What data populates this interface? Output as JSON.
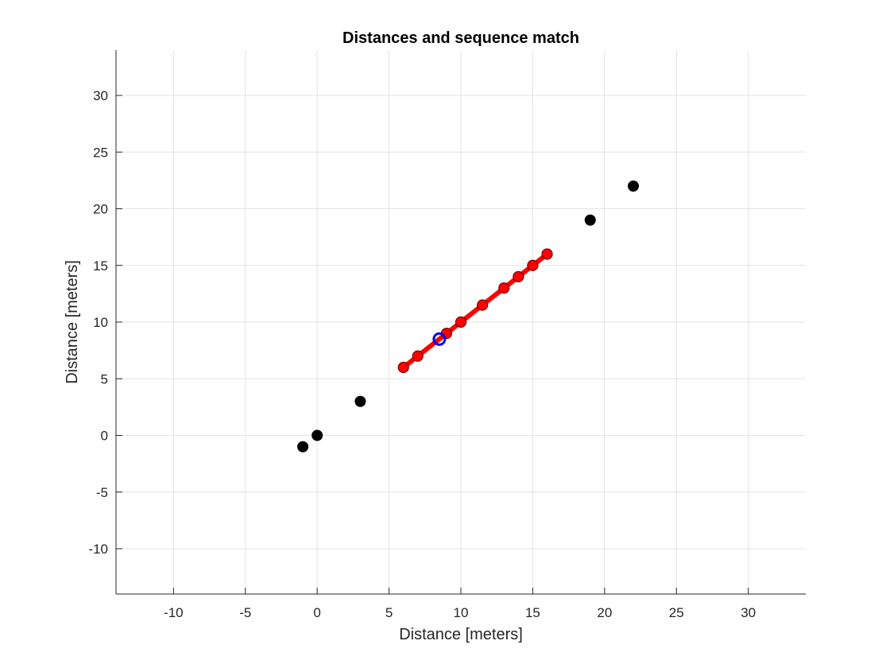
{
  "chart_data": {
    "type": "scatter",
    "title": "Distances and sequence match",
    "xlabel": "Distance [meters]",
    "ylabel": "Distance [meters]",
    "xlim": [
      -14,
      34
    ],
    "ylim": [
      -14,
      34
    ],
    "xticks": [
      -10,
      -5,
      0,
      5,
      10,
      15,
      20,
      25,
      30
    ],
    "yticks": [
      -10,
      -5,
      0,
      5,
      10,
      15,
      20,
      25,
      30
    ],
    "grid": true,
    "legend": "none",
    "series": [
      {
        "kind": "points",
        "color": "#000000",
        "points": [
          [
            -1,
            -1
          ],
          [
            0,
            0
          ],
          [
            3,
            3
          ],
          [
            19,
            19
          ],
          [
            22,
            22
          ]
        ]
      },
      {
        "kind": "line-with-markers",
        "color": "#ff0000",
        "points": [
          [
            6,
            6
          ],
          [
            7,
            7
          ],
          [
            9,
            9
          ],
          [
            10,
            10
          ],
          [
            11.5,
            11.5
          ],
          [
            13,
            13
          ],
          [
            14,
            14
          ],
          [
            15,
            15
          ],
          [
            16,
            16
          ]
        ]
      },
      {
        "kind": "marker",
        "color": "#0000ff",
        "points": [
          [
            8.5,
            8.5
          ]
        ]
      }
    ]
  }
}
